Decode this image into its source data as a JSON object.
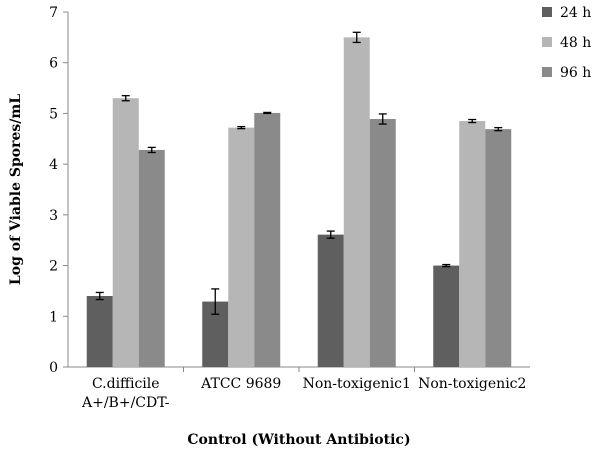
{
  "chart_data": {
    "type": "bar",
    "title": "",
    "xlabel": "Control (Without Antibiotic)",
    "ylabel": "Log of Viable Spores/mL",
    "ylim": [
      0,
      7
    ],
    "yticks": [
      0,
      1,
      2,
      3,
      4,
      5,
      6,
      7
    ],
    "grid": false,
    "legend_position": "top-right",
    "categories": [
      [
        "C.difficile",
        "A+/B+/CDT-"
      ],
      [
        "ATCC 9689"
      ],
      [
        "Non-toxigenic1"
      ],
      [
        "Non-toxigenic2"
      ]
    ],
    "series": [
      {
        "name": "24 h",
        "color": "#5f5f5f",
        "values": [
          1.4,
          1.29,
          2.61,
          2.0
        ],
        "errors": [
          0.07,
          0.25,
          0.07,
          0.02
        ]
      },
      {
        "name": "48 h",
        "color": "#b6b6b6",
        "values": [
          5.3,
          4.72,
          6.5,
          4.85
        ],
        "errors": [
          0.05,
          0.02,
          0.1,
          0.03
        ]
      },
      {
        "name": "96 h",
        "color": "#8a8a8a",
        "values": [
          4.28,
          5.01,
          4.89,
          4.69
        ],
        "errors": [
          0.05,
          0.01,
          0.1,
          0.03
        ]
      }
    ]
  }
}
